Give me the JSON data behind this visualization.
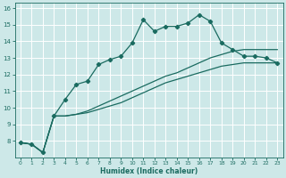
{
  "xlabel": "Humidex (Indice chaleur)",
  "bg_color": "#cde8e8",
  "grid_color": "#b8d8d8",
  "line_color": "#1a6b60",
  "xlim": [
    -0.5,
    23.5
  ],
  "ylim": [
    7.0,
    16.3
  ],
  "xticks": [
    0,
    1,
    2,
    3,
    4,
    5,
    6,
    7,
    8,
    9,
    10,
    11,
    12,
    13,
    14,
    15,
    16,
    17,
    18,
    19,
    20,
    21,
    22,
    23
  ],
  "yticks": [
    8,
    9,
    10,
    11,
    12,
    13,
    14,
    15,
    16
  ],
  "line1_x": [
    0,
    1,
    2,
    3,
    4,
    5,
    6,
    7,
    8,
    9,
    10,
    11,
    12,
    13,
    14,
    15,
    16,
    17,
    18,
    19,
    20,
    21,
    22,
    23
  ],
  "line1_y": [
    7.9,
    7.8,
    7.3,
    9.5,
    10.5,
    11.4,
    11.6,
    12.6,
    12.9,
    13.1,
    13.9,
    15.3,
    14.6,
    14.9,
    14.9,
    15.1,
    15.6,
    15.2,
    13.9,
    13.5,
    13.1,
    13.1,
    13.0,
    12.7
  ],
  "line2_x": [
    0,
    1,
    2,
    3,
    4,
    5,
    6,
    7,
    8,
    9,
    10,
    11,
    12,
    13,
    14,
    15,
    16,
    17,
    18,
    19,
    20,
    21,
    22,
    23
  ],
  "line2_y": [
    7.9,
    7.8,
    7.3,
    9.5,
    9.5,
    9.6,
    9.7,
    9.9,
    10.1,
    10.3,
    10.6,
    10.9,
    11.2,
    11.5,
    11.7,
    11.9,
    12.1,
    12.3,
    12.5,
    12.6,
    12.7,
    12.7,
    12.7,
    12.7
  ],
  "line3_x": [
    0,
    1,
    2,
    3,
    4,
    5,
    6,
    7,
    8,
    9,
    10,
    11,
    12,
    13,
    14,
    15,
    16,
    17,
    18,
    19,
    20,
    21,
    22,
    23
  ],
  "line3_y": [
    7.9,
    7.8,
    7.3,
    9.5,
    9.5,
    9.6,
    9.8,
    10.1,
    10.4,
    10.7,
    11.0,
    11.3,
    11.6,
    11.9,
    12.1,
    12.4,
    12.7,
    13.0,
    13.2,
    13.4,
    13.5,
    13.5,
    13.5,
    13.5
  ]
}
